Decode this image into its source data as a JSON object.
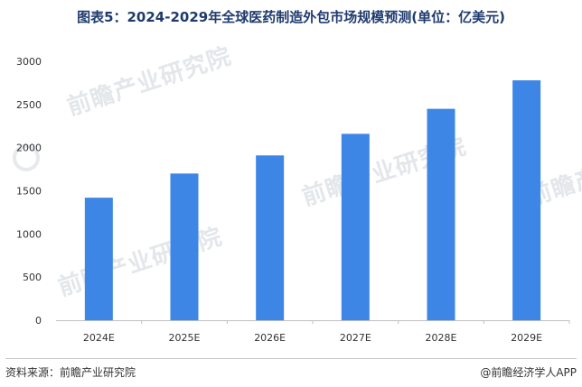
{
  "title": "图表5：2024-2029年全球医药制造外包市场规模预测(单位：亿美元)",
  "chart_data": {
    "type": "bar",
    "categories": [
      "2024E",
      "2025E",
      "2026E",
      "2027E",
      "2028E",
      "2029E"
    ],
    "values": [
      1420,
      1700,
      1910,
      2160,
      2450,
      2780
    ],
    "ylim": [
      0,
      3000
    ],
    "yticks": [
      0,
      500,
      1000,
      1500,
      2000,
      2500,
      3000
    ],
    "grid": false,
    "bar_color": "#3d86e6"
  },
  "watermark": {
    "text": "前瞻产业研究院"
  },
  "footer": {
    "source": "资料来源：前瞻产业研究院",
    "credit": "@前瞻经济学人APP"
  }
}
